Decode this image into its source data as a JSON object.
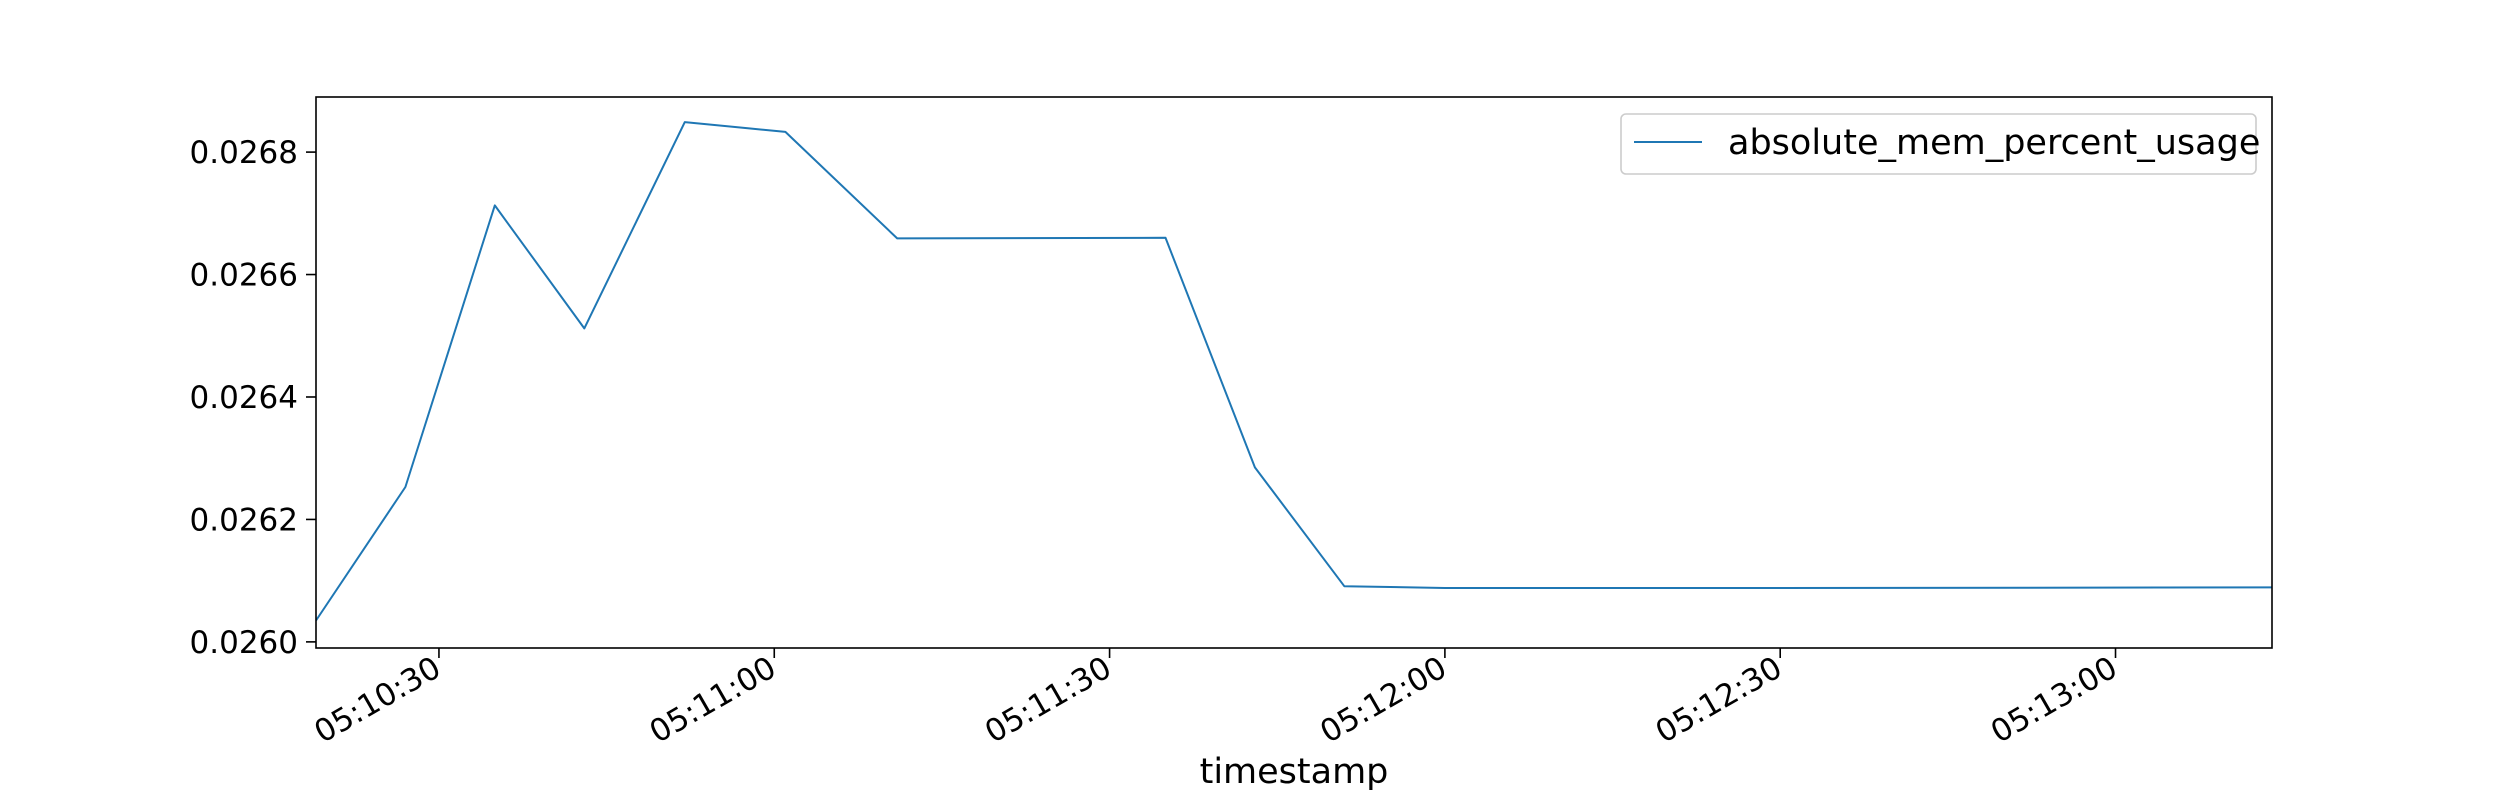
{
  "chart_data": {
    "type": "line",
    "title": "",
    "xlabel": "timestamp",
    "ylabel": "",
    "xlim": [
      "05:10:19",
      "05:13:14"
    ],
    "ylim": [
      0.02599,
      0.02689
    ],
    "x_ticks": [
      "05:10:30",
      "05:11:00",
      "05:11:30",
      "05:12:00",
      "05:12:30",
      "05:13:00"
    ],
    "y_ticks": [
      "0.0260",
      "0.0262",
      "0.0264",
      "0.0266",
      "0.0268"
    ],
    "grid": false,
    "legend": {
      "position": "top-right"
    },
    "series": [
      {
        "name": "absolute_mem_percent_usage",
        "color": "#1f77b4",
        "x": [
          "05:10:19",
          "05:10:27",
          "05:10:35",
          "05:10:43",
          "05:10:52",
          "05:11:01",
          "05:11:11",
          "05:11:35",
          "05:11:43",
          "05:11:51",
          "05:12:00",
          "05:12:30",
          "05:13:14"
        ],
        "y": [
          0.026035,
          0.026253,
          0.026713,
          0.026512,
          0.026849,
          0.026833,
          0.026659,
          0.02666,
          0.026285,
          0.026091,
          0.026088,
          0.026088,
          0.026089
        ]
      }
    ]
  }
}
